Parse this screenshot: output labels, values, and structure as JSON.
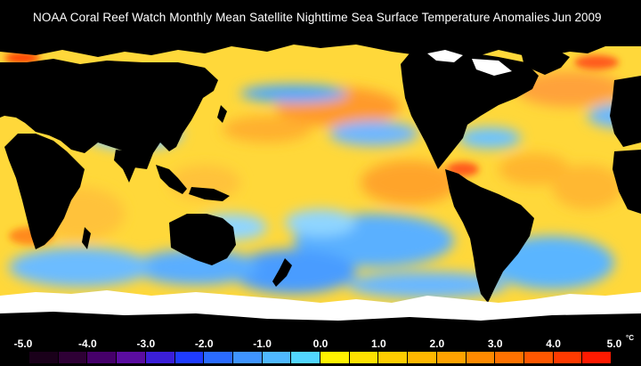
{
  "header": {
    "title": "NOAA Coral Reef Watch Monthly Mean Satellite Nighttime Sea Surface Temperature Anomalies",
    "date": "Jun 2009"
  },
  "legend": {
    "tick_labels": [
      "-5.0",
      "-4.0",
      "-3.0",
      "-2.0",
      "-1.0",
      "0.0",
      "1.0",
      "2.0",
      "3.0",
      "4.0",
      "5.0"
    ],
    "unit": "°C",
    "colors": [
      "#1a001a",
      "#2e0035",
      "#46006a",
      "#5a0da0",
      "#3b1fd8",
      "#1f3cff",
      "#2a6bff",
      "#3f94ff",
      "#4fb8ff",
      "#52d6ff",
      "#fff200",
      "#ffe100",
      "#ffcd00",
      "#ffb700",
      "#ffa200",
      "#ff8a00",
      "#ff7200",
      "#ff5700",
      "#ff3a00",
      "#ff1a00"
    ],
    "ocean_colors": {
      "warm": "#ffd83a",
      "hot": "#ff9a2a",
      "cool": "#4aa8ff",
      "cold": "#2f5bff",
      "neutral": "#9fe0ff"
    },
    "land_color": "#000000",
    "ice_color": "#ffffff"
  }
}
